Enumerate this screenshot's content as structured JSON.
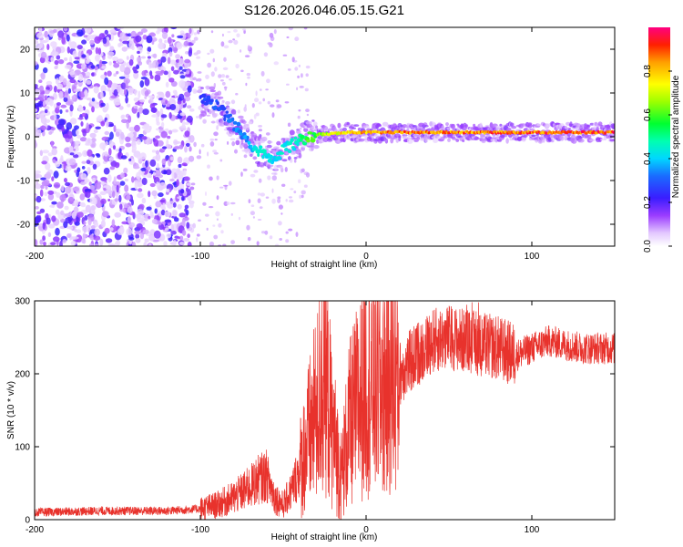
{
  "figure_title": "S126.2026.046.05.15.G21",
  "chart_data": [
    {
      "type": "heatmap",
      "title": "S126.2026.046.05.15.G21",
      "xlabel": "Height of straight line (km)",
      "ylabel": "Frequency (Hz)",
      "xlim": [
        -200,
        150
      ],
      "ylim": [
        -25,
        25
      ],
      "xticks": [
        -200,
        -100,
        0,
        100
      ],
      "yticks": [
        -20,
        -10,
        0,
        10,
        20
      ],
      "xtick_labels": [
        "-200",
        "-100",
        "0",
        "100"
      ],
      "ytick_labels": [
        "-20",
        "-10",
        "0",
        "10",
        "20"
      ],
      "colorbar": {
        "label": "Normalized spectral amplitude",
        "range": [
          0,
          1
        ],
        "ticks": [
          0.0,
          0.2,
          0.4,
          0.6,
          0.8
        ],
        "tick_labels": [
          "0.0",
          "0.2",
          "0.4",
          "0.6",
          "0.8"
        ]
      },
      "ridge": {
        "x": [
          -100,
          -95,
          -90,
          -85,
          -80,
          -75,
          -70,
          -65,
          -60,
          -55,
          -50,
          -45,
          -40,
          -35,
          -30,
          -20,
          -10,
          0,
          20,
          50,
          100,
          150
        ],
        "freq": [
          8,
          9,
          7,
          5,
          3,
          1,
          -2,
          -3,
          -4,
          -5,
          -3,
          -2,
          -1,
          0,
          0.5,
          0.7,
          1,
          1,
          1,
          1,
          1,
          1
        ],
        "amplitude": [
          0.25,
          0.3,
          0.3,
          0.3,
          0.35,
          0.35,
          0.4,
          0.45,
          0.45,
          0.45,
          0.45,
          0.45,
          0.5,
          0.6,
          0.65,
          0.75,
          0.85,
          0.85,
          0.9,
          0.9,
          0.92,
          0.95
        ]
      }
    },
    {
      "type": "line",
      "xlabel": "Height of straight line (km)",
      "ylabel": "SNR (10 * v/v)",
      "xlim": [
        -200,
        150
      ],
      "ylim": [
        0,
        300
      ],
      "xticks": [
        -200,
        -100,
        0,
        100
      ],
      "yticks": [
        0,
        100,
        200,
        300
      ],
      "xtick_labels": [
        "-200",
        "-100",
        "0",
        "100"
      ],
      "ytick_labels": [
        "0",
        "100",
        "200",
        "300"
      ],
      "color": "#e8322c",
      "series": [
        {
          "name": "SNR",
          "x": [
            -200,
            -180,
            -160,
            -140,
            -120,
            -100,
            -90,
            -80,
            -70,
            -65,
            -60,
            -55,
            -50,
            -45,
            -40,
            -35,
            -30,
            -25,
            -20,
            -15,
            -10,
            -5,
            0,
            10,
            20,
            30,
            40,
            50,
            60,
            70,
            80,
            90,
            100,
            110,
            120,
            130,
            140,
            150
          ],
          "values": [
            10,
            11,
            12,
            12,
            12,
            15,
            20,
            30,
            45,
            55,
            60,
            30,
            20,
            40,
            70,
            110,
            150,
            200,
            120,
            60,
            130,
            160,
            190,
            185,
            200,
            225,
            245,
            250,
            245,
            240,
            235,
            225,
            235,
            245,
            240,
            235,
            235,
            235
          ]
        }
      ]
    }
  ]
}
